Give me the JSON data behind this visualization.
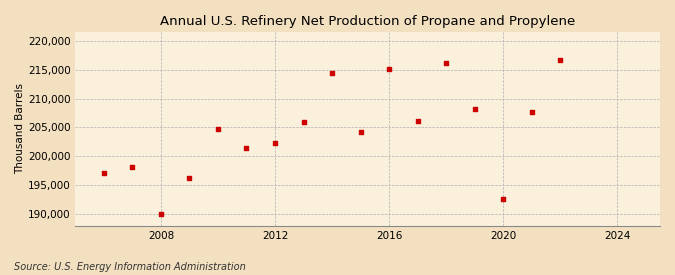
{
  "title": "Annual U.S. Refinery Net Production of Propane and Propylene",
  "ylabel": "Thousand Barrels",
  "source": "Source: U.S. Energy Information Administration",
  "background_color": "#f2e0c0",
  "plot_background_color": "#faf0dc",
  "marker_color": "#cc0000",
  "years": [
    2006,
    2007,
    2008,
    2009,
    2010,
    2011,
    2012,
    2013,
    2014,
    2015,
    2016,
    2017,
    2018,
    2019,
    2020,
    2021,
    2022
  ],
  "values": [
    197200,
    198200,
    190100,
    196200,
    204700,
    201400,
    202300,
    206000,
    214400,
    204200,
    215100,
    206100,
    216200,
    208200,
    192700,
    207600,
    216700
  ],
  "ylim": [
    188000,
    221500
  ],
  "xlim": [
    2005.0,
    2025.5
  ],
  "yticks": [
    190000,
    195000,
    200000,
    205000,
    210000,
    215000,
    220000
  ],
  "xticks": [
    2008,
    2012,
    2016,
    2020,
    2024
  ],
  "title_fontsize": 9.5,
  "label_fontsize": 7.5,
  "tick_fontsize": 7.5,
  "source_fontsize": 7
}
